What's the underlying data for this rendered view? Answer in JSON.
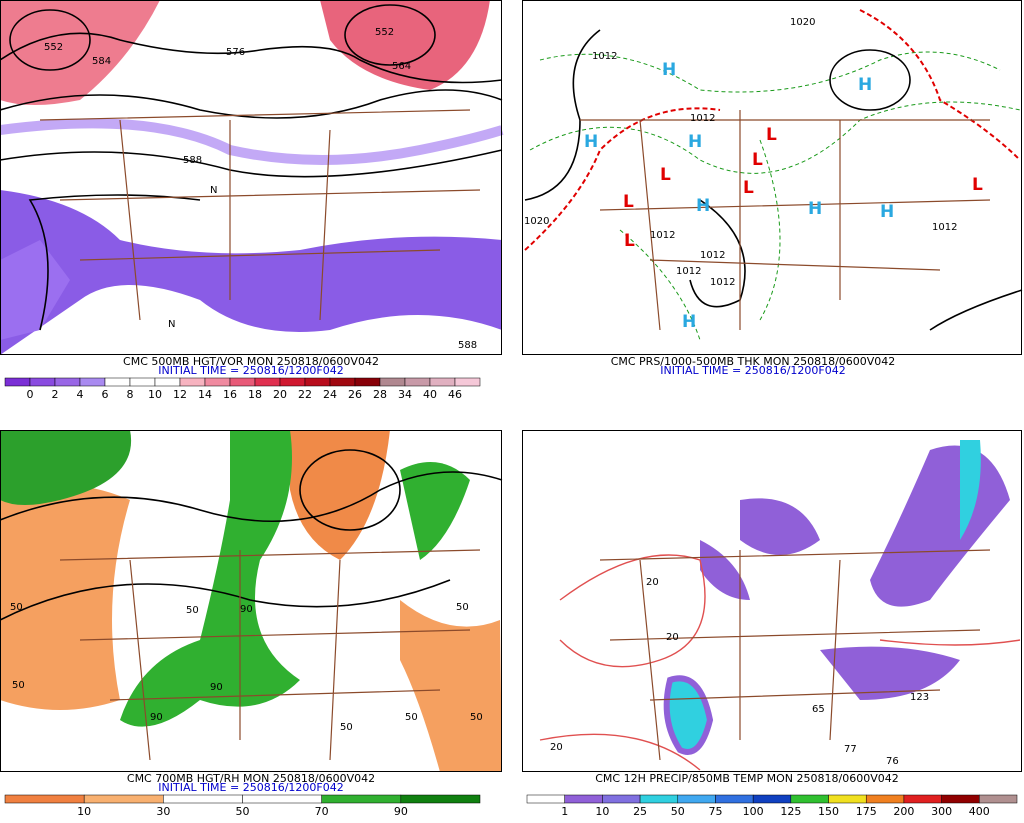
{
  "panels": [
    {
      "caption": "CMC 500MB HGT/VOR MON 250818/0600V042",
      "initial_time": "INITIAL TIME = 250816/1200F042",
      "scale": {
        "labels": [
          "0",
          "2",
          "4",
          "6",
          "8",
          "10",
          "12",
          "14",
          "16",
          "18",
          "20",
          "22",
          "24",
          "26",
          "28",
          "34",
          "40",
          "46"
        ],
        "colors": [
          "#7b2fd6",
          "#8a4be0",
          "#9966e6",
          "#a98af0",
          "#ffffff",
          "#ffffff",
          "#ffffff",
          "#f7b3c0",
          "#f08aa0",
          "#e85a78",
          "#e03050",
          "#d01830",
          "#b80c1c",
          "#a00810",
          "#880008",
          "#b08890",
          "#c89aa8",
          "#e0b0c0",
          "#f5c8d8"
        ]
      },
      "map_labels": [
        "552",
        "584",
        "576",
        "552",
        "564",
        "588",
        "588",
        "N",
        "N"
      ]
    },
    {
      "caption": "CMC PRS/1000-500MB THK MON 250818/0600V042",
      "initial_time": "INITIAL TIME = 250816/1200F042",
      "scale": null,
      "map_labels": [
        "H",
        "H",
        "H",
        "H",
        "H",
        "H",
        "H",
        "H",
        "L",
        "L",
        "L",
        "L",
        "L",
        "L",
        "L",
        "1020",
        "1012",
        "1012",
        "1012",
        "1012",
        "1012",
        "1020",
        "1012",
        "1012"
      ]
    },
    {
      "caption": "CMC 700MB HGT/RH MON 250818/0600V042",
      "initial_time": "INITIAL TIME = 250816/1200F042",
      "scale": {
        "labels": [
          "10",
          "30",
          "50",
          "70",
          "90"
        ],
        "colors": [
          "#f08040",
          "#f8b070",
          "#ffffff",
          "#ffffff",
          "#30b030",
          "#108010"
        ]
      },
      "map_labels": [
        "50",
        "50",
        "50",
        "90",
        "90",
        "90",
        "50",
        "50",
        "50",
        "50"
      ]
    },
    {
      "caption": "CMC 12H PRECIP/850MB TEMP MON 250818/0600V042",
      "initial_time": null,
      "scale": {
        "labels": [
          "1",
          "10",
          "25",
          "50",
          "75",
          "100",
          "125",
          "150",
          "175",
          "200",
          "300",
          "400"
        ],
        "colors": [
          "#ffffff",
          "#9060d8",
          "#8070e0",
          "#30d0e0",
          "#40a8f0",
          "#3070e0",
          "#1040c0",
          "#30c030",
          "#f0e020",
          "#f08020",
          "#e02020",
          "#900000",
          "#b09090"
        ]
      },
      "map_labels": [
        "20",
        "20",
        "20",
        "65",
        "77",
        "76",
        "123"
      ]
    }
  ]
}
